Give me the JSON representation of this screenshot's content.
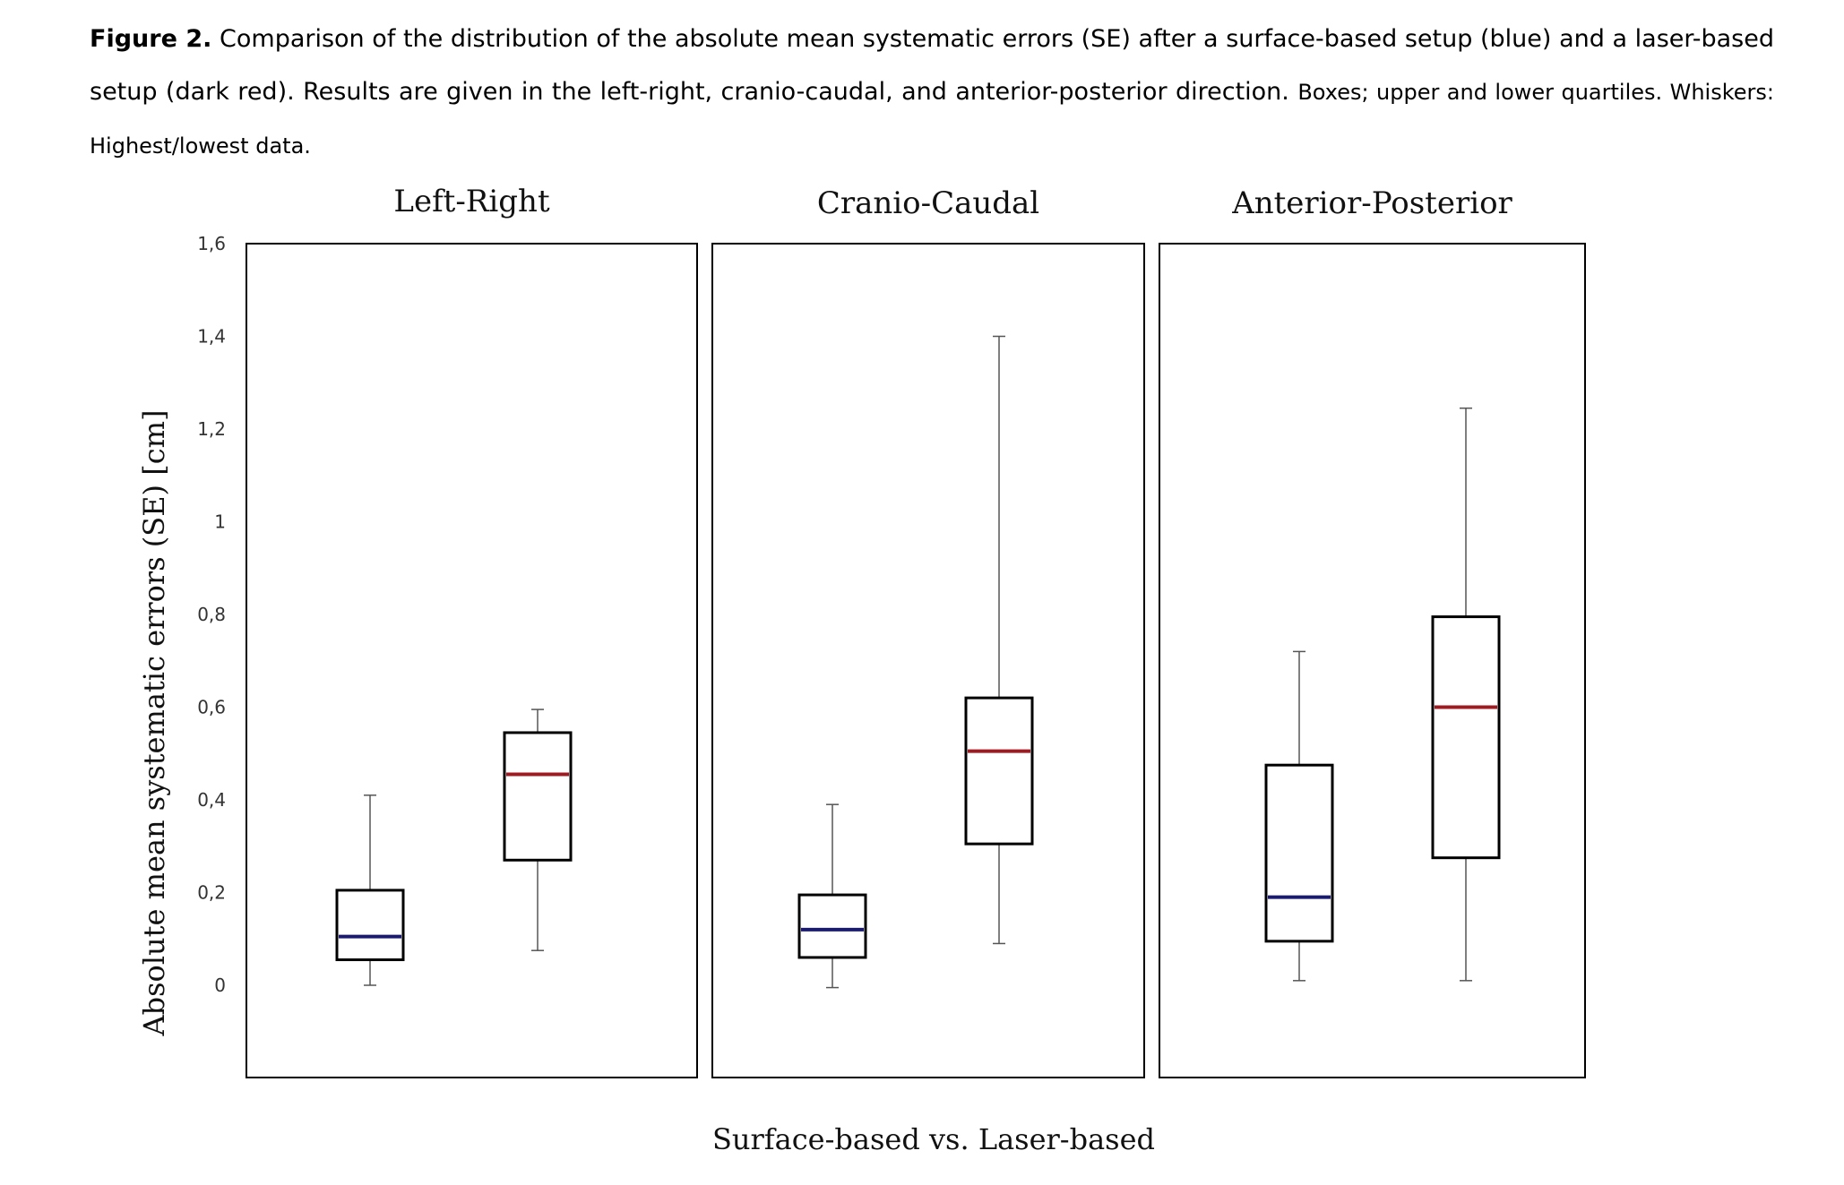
{
  "caption": {
    "label": "Figure 2.",
    "text": "Comparison of the distribution of the absolute mean systematic errors (SE) after a surface-based setup (blue) and a laser-based setup (dark red). Results are given in the left-right, cranio-caudal, and anterior-posterior direction.",
    "note": "Boxes; upper and lower quartiles. Whiskers: Highest/lowest data."
  },
  "chart_data": {
    "type": "boxplot",
    "ylabel": "Absolute mean systematic errors (SE) [cm]",
    "xlabel": "Surface-based vs. Laser-based",
    "yticks": [
      "1,6",
      "1,4",
      "1,2",
      "1",
      "0,8",
      "0,6",
      "0,4",
      "0,2",
      "0"
    ],
    "ylim": [
      -0.2,
      1.6
    ],
    "grid": false,
    "colors": {
      "surface": "#1a1a6e",
      "laser": "#9e1b22",
      "box": "#000000",
      "whisker": "#555555"
    },
    "panels": [
      {
        "title": "Left-Right",
        "boxes": [
          {
            "series": "surface",
            "min": 0.0,
            "q1": 0.055,
            "median": 0.105,
            "q3": 0.205,
            "max": 0.41
          },
          {
            "series": "laser",
            "min": 0.075,
            "q1": 0.27,
            "median": 0.455,
            "q3": 0.545,
            "max": 0.595
          }
        ]
      },
      {
        "title": "Cranio-Caudal",
        "boxes": [
          {
            "series": "surface",
            "min": -0.005,
            "q1": 0.06,
            "median": 0.12,
            "q3": 0.195,
            "max": 0.39
          },
          {
            "series": "laser",
            "min": 0.09,
            "q1": 0.305,
            "median": 0.505,
            "q3": 0.62,
            "max": 1.4
          }
        ]
      },
      {
        "title": "Anterior-Posterior",
        "boxes": [
          {
            "series": "surface",
            "min": 0.01,
            "q1": 0.095,
            "median": 0.19,
            "q3": 0.475,
            "max": 0.72
          },
          {
            "series": "laser",
            "min": 0.01,
            "q1": 0.275,
            "median": 0.6,
            "q3": 0.795,
            "max": 1.245
          }
        ]
      }
    ]
  }
}
